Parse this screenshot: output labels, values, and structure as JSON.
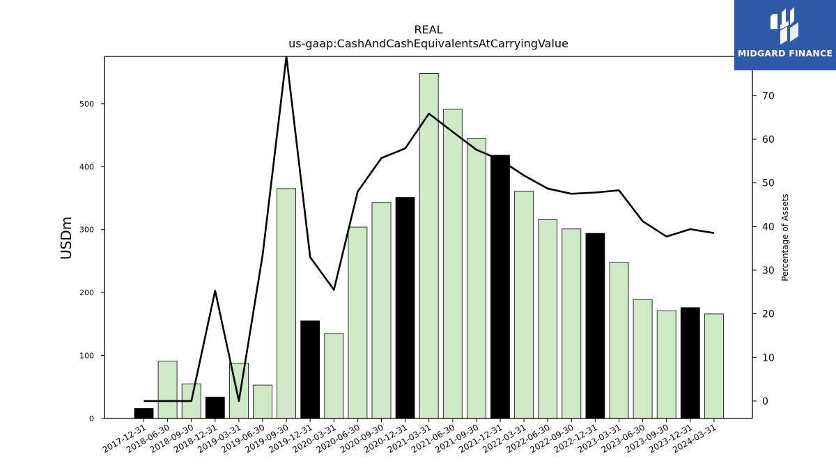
{
  "chart_data": {
    "type": "bar",
    "title": "REAL",
    "subtitle": "us-gaap:CashAndCashEquivalentsAtCarryingValue",
    "ylabel": "USDm",
    "y2label": "Percentage of Assets",
    "ylim": [
      0,
      575
    ],
    "y2lim": [
      -4,
      79
    ],
    "yticks": [
      0,
      100,
      200,
      300,
      400,
      500
    ],
    "y2ticks": [
      0,
      10,
      20,
      30,
      40,
      50,
      60,
      70
    ],
    "categories": [
      "2017-12-31",
      "2018-06-30",
      "2018-09-30",
      "2018-12-31",
      "2019-03-31",
      "2019-06-30",
      "2019-09-30",
      "2019-12-31",
      "2020-03-31",
      "2020-06-30",
      "2020-09-30",
      "2020-12-31",
      "2021-03-31",
      "2021-06-30",
      "2021-09-30",
      "2021-12-31",
      "2022-03-31",
      "2022-06-30",
      "2022-09-30",
      "2022-12-31",
      "2023-03-31",
      "2023-06-30",
      "2023-09-30",
      "2023-12-31",
      "2024-03-31"
    ],
    "series": [
      {
        "kind": "bar",
        "axis": "left",
        "values": [
          16,
          91,
          55,
          34,
          88,
          53,
          365,
          155,
          135,
          304,
          343,
          351,
          548,
          491,
          445,
          418,
          361,
          316,
          301,
          294,
          248,
          189,
          171,
          176,
          166
        ],
        "fiscal_year_end": [
          true,
          false,
          false,
          true,
          false,
          false,
          false,
          true,
          false,
          false,
          false,
          true,
          false,
          false,
          false,
          true,
          false,
          false,
          false,
          true,
          false,
          false,
          false,
          true,
          false
        ]
      },
      {
        "kind": "line",
        "axis": "right",
        "values": [
          0,
          0,
          0,
          25.3,
          0,
          33.5,
          79,
          33,
          25.5,
          48,
          55.7,
          57.9,
          65.9,
          61.7,
          57.6,
          55.3,
          51.7,
          48.7,
          47.5,
          47.8,
          48.3,
          41.2,
          37.7,
          39.4,
          38.5
        ]
      }
    ],
    "colors": {
      "bar": "#cde9c6",
      "bar_fiscal_year_end": "#000000",
      "line": "#000000"
    }
  },
  "logo": {
    "text": "MIDGARD FINANCE",
    "color": "#2f5aa8"
  }
}
